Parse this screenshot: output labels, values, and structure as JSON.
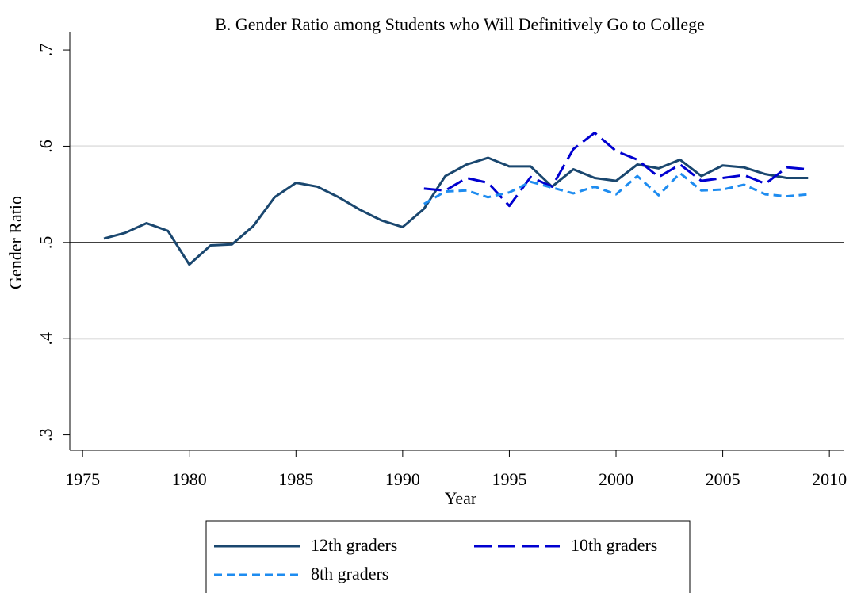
{
  "chart_data": {
    "type": "line",
    "title": "B. Gender Ratio among Students who Will Definitively Go to College",
    "x_label": "Year",
    "y_label": "Gender Ratio",
    "x": [
      1976,
      1977,
      1978,
      1979,
      1980,
      1981,
      1982,
      1983,
      1984,
      1985,
      1986,
      1987,
      1988,
      1989,
      1990,
      1991,
      1992,
      1993,
      1994,
      1995,
      1996,
      1997,
      1998,
      1999,
      2000,
      2001,
      2002,
      2003,
      2004,
      2005,
      2006,
      2007,
      2008,
      2009
    ],
    "series": [
      {
        "name": "12th graders",
        "color": "#1a476f",
        "dash": "solid",
        "values": [
          0.504,
          0.51,
          0.52,
          0.512,
          0.477,
          0.497,
          0.498,
          0.517,
          0.547,
          0.562,
          0.558,
          0.547,
          0.534,
          0.523,
          0.516,
          0.535,
          0.569,
          0.581,
          0.588,
          0.579,
          0.579,
          0.558,
          0.576,
          0.567,
          0.564,
          0.581,
          0.577,
          0.586,
          0.569,
          0.58,
          0.578,
          0.571,
          0.567,
          0.567
        ]
      },
      {
        "name": "10th graders",
        "color": "#0000d0",
        "dash": "long",
        "values": [
          null,
          null,
          null,
          null,
          null,
          null,
          null,
          null,
          null,
          null,
          null,
          null,
          null,
          null,
          null,
          0.556,
          0.554,
          0.567,
          0.562,
          0.538,
          0.568,
          0.558,
          0.597,
          0.614,
          0.595,
          0.586,
          0.568,
          0.581,
          0.564,
          0.567,
          0.57,
          0.561,
          0.578,
          0.576
        ]
      },
      {
        "name": "8th graders",
        "color": "#1e8cf0",
        "dash": "short",
        "values": [
          null,
          null,
          null,
          null,
          null,
          null,
          null,
          null,
          null,
          null,
          null,
          null,
          null,
          null,
          null,
          0.54,
          0.553,
          0.554,
          0.547,
          0.552,
          0.563,
          0.557,
          0.551,
          0.558,
          0.55,
          0.569,
          0.549,
          0.572,
          0.554,
          0.555,
          0.56,
          0.55,
          0.548,
          0.55
        ]
      }
    ],
    "xlim": [
      1974.4,
      2010.7
    ],
    "ylim": [
      0.284,
      0.719
    ],
    "xticks": [
      1975,
      1980,
      1985,
      1990,
      1995,
      2000,
      2005,
      2010
    ],
    "yticks": [
      {
        "value": 0.3,
        "label": ".3"
      },
      {
        "value": 0.4,
        "label": ".4"
      },
      {
        "value": 0.5,
        "label": ".5"
      },
      {
        "value": 0.6,
        "label": ".6"
      },
      {
        "value": 0.7,
        "label": ".7"
      }
    ],
    "reference_line": 0.5,
    "grid": true,
    "legend": "bottom"
  }
}
